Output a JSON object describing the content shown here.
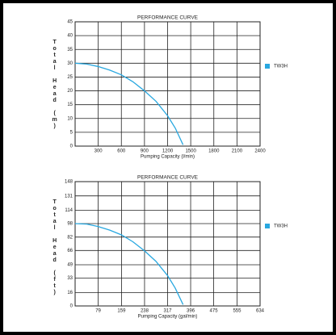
{
  "chart_data": [
    {
      "type": "line",
      "title": "PERFORMANCE CURVE",
      "x_label": "Pumping Capacity (l/min)",
      "y_label": "Total Head (m)",
      "xlim": [
        0,
        2400
      ],
      "xticks": [
        300,
        600,
        900,
        1200,
        1500,
        1800,
        2100,
        2400
      ],
      "ylim": [
        0,
        45
      ],
      "yticks": [
        0,
        5,
        10,
        15,
        20,
        25,
        30,
        35,
        40,
        45
      ],
      "grid": true,
      "x": [
        0,
        150,
        300,
        450,
        600,
        750,
        900,
        1050,
        1200,
        1300,
        1400
      ],
      "series": [
        {
          "name": "TW3H",
          "color": "#29a8e0",
          "values": [
            30,
            29.7,
            28.8,
            27.5,
            25.8,
            23.3,
            20,
            16.2,
            11,
            6.5,
            0.5
          ]
        }
      ]
    },
    {
      "type": "line",
      "title": "PERFORMANCE CURVE",
      "x_label": "Pumping Capacity (gal/min)",
      "y_label": "Total Head (ft)",
      "xlim": [
        0,
        634
      ],
      "xticks": [
        79,
        159,
        238,
        317,
        396,
        475,
        555,
        634
      ],
      "ylim": [
        0,
        148
      ],
      "yticks": [
        0,
        16,
        33,
        49,
        66,
        82,
        98,
        114,
        131,
        148
      ],
      "grid": true,
      "x": [
        0,
        40,
        79,
        119,
        159,
        198,
        238,
        277,
        317,
        343,
        370
      ],
      "series": [
        {
          "name": "TW3H",
          "color": "#29a8e0",
          "values": [
            98,
            97.4,
            94.5,
            90.2,
            84.6,
            76.4,
            65.6,
            53.1,
            36.1,
            21.3,
            1.6
          ]
        }
      ]
    }
  ]
}
